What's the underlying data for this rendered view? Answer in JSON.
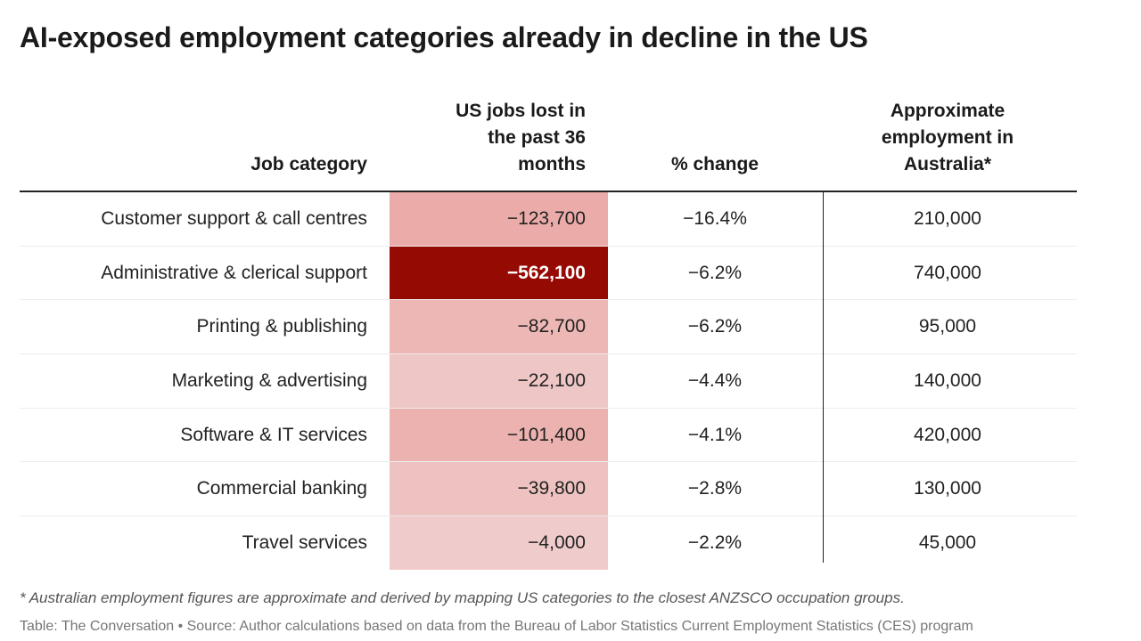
{
  "chart_data": {
    "type": "table",
    "title": "AI-exposed employment categories already in decline in the US",
    "columns": [
      "Job category",
      "US jobs lost in the past 36 months",
      "% change",
      "Approximate employment in Australia*"
    ],
    "header_lines": {
      "jobs": [
        "US jobs lost in",
        "the past 36",
        "months"
      ],
      "aus": [
        "Approximate",
        "employment in",
        "Australia*"
      ]
    },
    "rows": [
      {
        "category": "Customer support & call centres",
        "jobs_lost": "−123,700",
        "jobs_lost_value": -123700,
        "pct_change": "−16.4%",
        "australia": "210,000"
      },
      {
        "category": "Administrative & clerical support",
        "jobs_lost": "−562,100",
        "jobs_lost_value": -562100,
        "pct_change": "−6.2%",
        "australia": "740,000"
      },
      {
        "category": "Printing & publishing",
        "jobs_lost": "−82,700",
        "jobs_lost_value": -82700,
        "pct_change": "−6.2%",
        "australia": "95,000"
      },
      {
        "category": "Marketing & advertising",
        "jobs_lost": "−22,100",
        "jobs_lost_value": -22100,
        "pct_change": "−4.4%",
        "australia": "140,000"
      },
      {
        "category": "Software & IT services",
        "jobs_lost": "−101,400",
        "jobs_lost_value": -101400,
        "pct_change": "−4.1%",
        "australia": "420,000"
      },
      {
        "category": "Commercial banking",
        "jobs_lost": "−39,800",
        "jobs_lost_value": -39800,
        "pct_change": "−2.8%",
        "australia": "130,000"
      },
      {
        "category": "Travel services",
        "jobs_lost": "−4,000",
        "jobs_lost_value": -4000,
        "pct_change": "−2.2%",
        "australia": "45,000"
      }
    ],
    "heat_colors": {
      "low": "#f0cccc",
      "mid": "#eaa8a4",
      "high": "#960a04"
    }
  },
  "footnote": "* Australian employment figures are approximate and derived by mapping US categories to the closest ANZSCO occupation groups.",
  "source": "Table: The Conversation • Source: Author calculations based on data from the Bureau of Labor Statistics Current Employment Statistics (CES) program"
}
